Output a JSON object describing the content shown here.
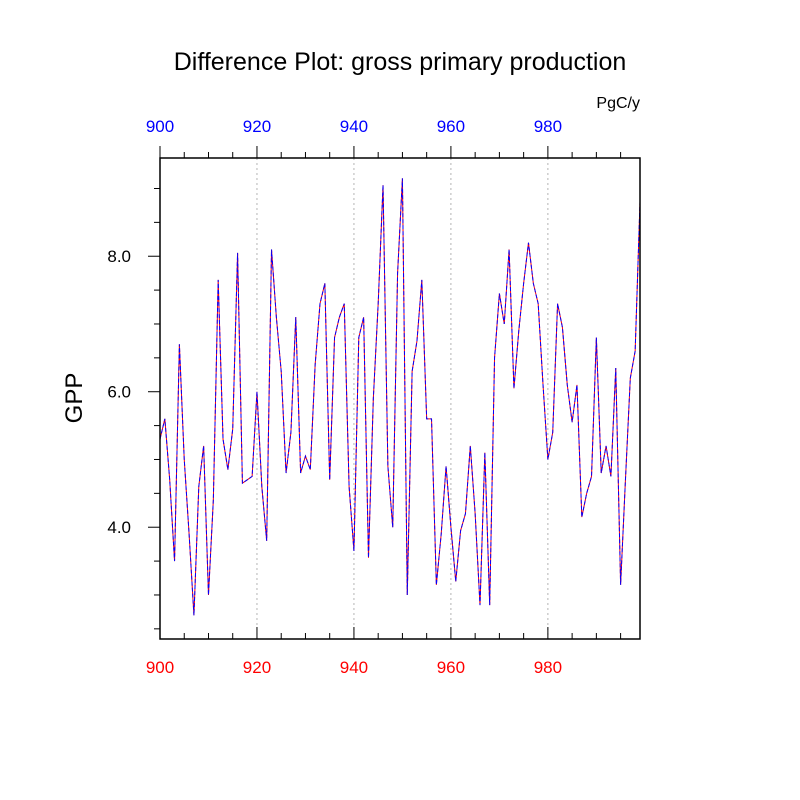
{
  "chart_data": {
    "type": "line",
    "title": "Difference Plot: gross primary production",
    "units": "PgC/y",
    "ylabel": "GPP",
    "xlabel": "",
    "xlim": [
      900,
      999
    ],
    "ylim": [
      2.35,
      9.45
    ],
    "x_ticks_top": [
      "900",
      "920",
      "940",
      "960",
      "980"
    ],
    "x_ticks_bottom": [
      "900",
      "920",
      "940",
      "960",
      "980"
    ],
    "y_ticks": [
      "4.0",
      "6.0",
      "8.0"
    ],
    "grid": "vertical-dotted",
    "colors": {
      "line_a": "#ff0000",
      "line_b": "#0000ff",
      "top_axis": "#0000ff",
      "bottom_axis": "#ff0000",
      "grid": "#b4b4b4"
    },
    "x": [
      900,
      901,
      902,
      903,
      904,
      905,
      906,
      907,
      908,
      909,
      910,
      911,
      912,
      913,
      914,
      915,
      916,
      917,
      918,
      919,
      920,
      921,
      922,
      923,
      924,
      925,
      926,
      927,
      928,
      929,
      930,
      931,
      932,
      933,
      934,
      935,
      936,
      937,
      938,
      939,
      940,
      941,
      942,
      943,
      944,
      945,
      946,
      947,
      948,
      949,
      950,
      951,
      952,
      953,
      954,
      955,
      956,
      957,
      958,
      959,
      960,
      961,
      962,
      963,
      964,
      965,
      966,
      967,
      968,
      969,
      970,
      971,
      972,
      973,
      974,
      975,
      976,
      977,
      978,
      979,
      980,
      981,
      982,
      983,
      984,
      985,
      986,
      987,
      988,
      989,
      990,
      991,
      992,
      993,
      994,
      995,
      996,
      997,
      998,
      999
    ],
    "values": [
      5.3,
      5.6,
      4.7,
      3.5,
      6.7,
      5.0,
      3.9,
      2.7,
      4.6,
      5.2,
      3.0,
      4.4,
      7.65,
      5.3,
      4.85,
      5.45,
      8.05,
      4.65,
      4.7,
      4.75,
      6.0,
      4.6,
      3.8,
      8.1,
      7.1,
      6.3,
      4.8,
      5.4,
      7.1,
      4.8,
      5.05,
      4.85,
      6.4,
      7.3,
      7.6,
      4.7,
      6.8,
      7.1,
      7.3,
      4.6,
      3.65,
      6.8,
      7.1,
      3.55,
      5.9,
      7.3,
      9.05,
      4.9,
      4.0,
      7.75,
      9.15,
      3.0,
      6.3,
      6.75,
      7.65,
      5.6,
      5.6,
      3.15,
      3.9,
      4.9,
      4.0,
      3.2,
      3.95,
      4.2,
      5.2,
      4.2,
      2.85,
      5.1,
      2.85,
      6.5,
      7.45,
      7.0,
      8.1,
      6.05,
      6.9,
      7.6,
      8.2,
      7.6,
      7.3,
      6.1,
      5.0,
      5.4,
      7.3,
      6.95,
      6.1,
      5.55,
      6.1,
      4.15,
      4.5,
      4.75,
      6.8,
      4.8,
      5.2,
      4.75,
      6.35,
      3.15,
      4.7,
      6.2,
      6.6,
      8.8
    ]
  }
}
